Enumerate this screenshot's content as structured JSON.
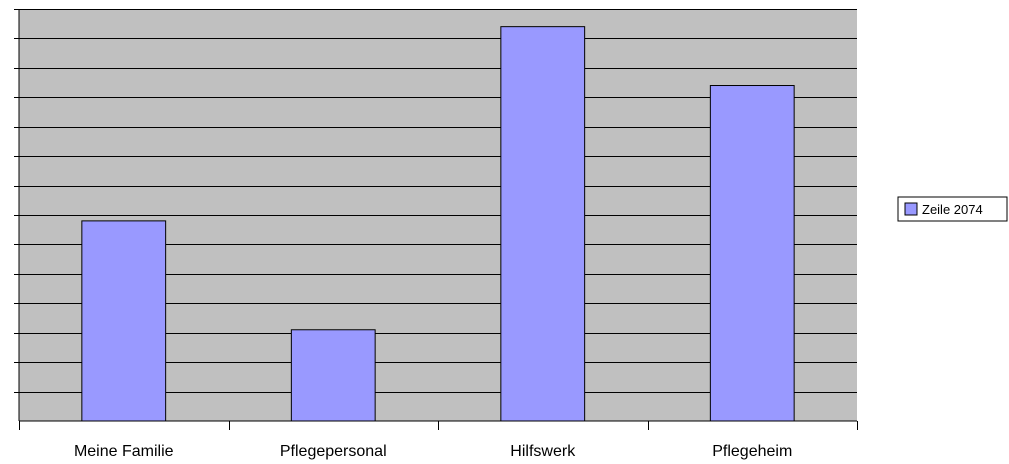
{
  "colors": {
    "plot_background": "#c0c0c0",
    "bar_fill": "#9999ff",
    "bar_stroke": "#000000",
    "gridline": "#000000"
  },
  "chart_data": {
    "type": "bar",
    "title": "",
    "xlabel": "",
    "ylabel": "",
    "categories": [
      "Meine Familie",
      "Pflegepersonal",
      "Hilfswerk",
      "Pflegeheim"
    ],
    "series": [
      {
        "name": "Zeile 2074",
        "values": [
          6.8,
          3.1,
          13.4,
          11.4
        ]
      }
    ],
    "ylim": [
      0,
      14
    ],
    "y_gridline_step": 1,
    "y_tick_labels_shown": false,
    "grid": true,
    "legend_position": "right"
  }
}
